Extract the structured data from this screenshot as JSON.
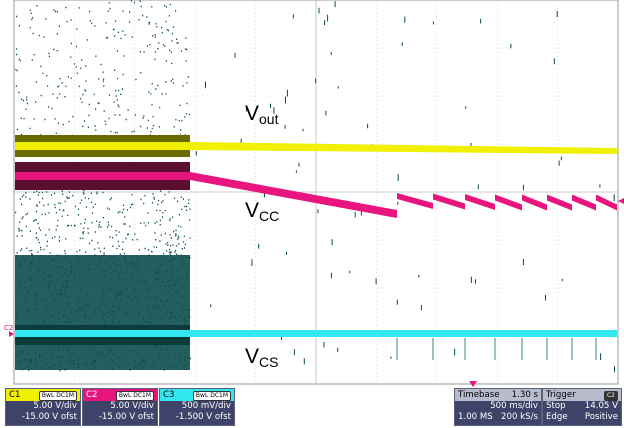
{
  "channels": [
    {
      "id": "C1",
      "tag": "BwL DC1M",
      "volts_div": "5.00 V/div",
      "offset": "-15.00 V ofst",
      "color": "#f0f000"
    },
    {
      "id": "C2",
      "tag": "BwL DC1M",
      "volts_div": "5.00 V/div",
      "offset": "-15.00 V ofst",
      "color": "#e8157e"
    },
    {
      "id": "C3",
      "tag": "BwL DC1M",
      "volts_div": "500 mV/div",
      "offset": "-1.500 V ofst",
      "color": "#31e8f0"
    }
  ],
  "timebase": {
    "label": "Timebase",
    "delay": "1.30 s",
    "time_div": "500 ms/div",
    "samples": "1.00 MS",
    "rate": "200 kS/s"
  },
  "trigger": {
    "label": "Trigger",
    "source_tag": "C2",
    "mode": "Stop",
    "level": "14.05 V",
    "type": "Edge",
    "slope": "Positive"
  },
  "trace_labels": {
    "vout_main": "V",
    "vout_sub": "out",
    "vcc_main": "V",
    "vcc_sub": "CC",
    "vcs_main": "V",
    "vcs_sub": "CS"
  },
  "marker_c2": "C2",
  "colors": {
    "ch1": "#f0f000",
    "ch2": "#e8157e",
    "ch3": "#31e8f0",
    "noise": "#0d4d4d",
    "panel": "#3e4369"
  }
}
